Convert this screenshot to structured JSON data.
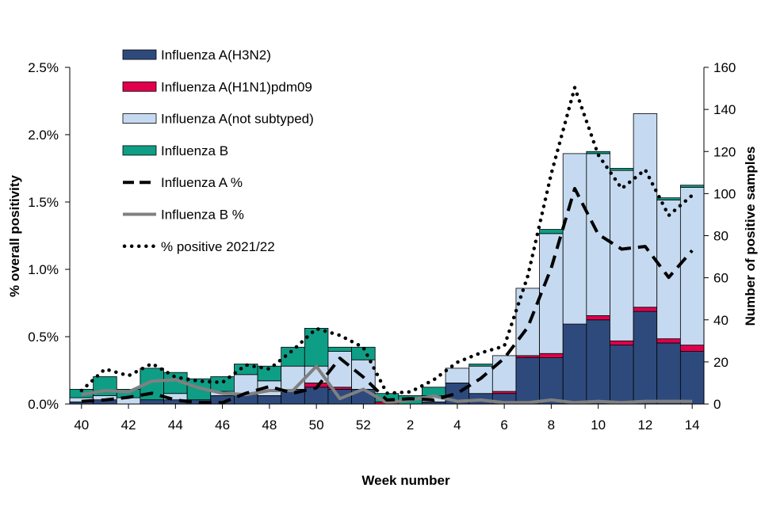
{
  "chart_data": {
    "type": "bar",
    "title": "",
    "xlabel": "Week number",
    "ylabel_left": "% overall positivity",
    "ylabel_right": "Number of positive samples",
    "ylim_left": [
      0,
      2.5
    ],
    "ylim_right": [
      0,
      160
    ],
    "weeks": [
      40,
      41,
      42,
      43,
      44,
      45,
      46,
      47,
      48,
      49,
      50,
      51,
      52,
      1,
      2,
      3,
      4,
      5,
      6,
      7,
      8,
      9,
      10,
      11,
      12,
      13,
      14
    ],
    "x_tick_labels": [
      "40",
      "42",
      "44",
      "46",
      "48",
      "50",
      "52",
      "2",
      "4",
      "6",
      "8",
      "10",
      "12",
      "14"
    ],
    "y_left_tick_labels": [
      "0.0%",
      "0.5%",
      "1.0%",
      "1.5%",
      "2.0%",
      "2.5%"
    ],
    "y_right_tick_labels": [
      "0",
      "20",
      "40",
      "60",
      "80",
      "100",
      "120",
      "140",
      "160"
    ],
    "bar_series": [
      {
        "name": "Influenza A(H3N2)",
        "color": "#2e4a7d",
        "values": [
          1,
          2,
          0,
          2,
          2,
          2,
          4,
          5,
          4,
          7,
          8,
          7,
          7,
          0,
          0,
          1,
          10,
          5,
          5,
          22,
          22,
          38,
          40,
          28,
          44,
          29,
          25
        ]
      },
      {
        "name": "Influenza A(H1N1)pdm09",
        "color": "#e0004d",
        "values": [
          0,
          0,
          0,
          0,
          0,
          0,
          0,
          0,
          0,
          0,
          2,
          1,
          0,
          1,
          0,
          0,
          0,
          0,
          1,
          1,
          2,
          0,
          2,
          2,
          2,
          2,
          3
        ]
      },
      {
        "name": "Influenza A(not subtyped)",
        "color": "#c5daf0",
        "values": [
          2,
          2,
          3,
          0,
          3,
          0,
          2,
          9,
          7,
          11,
          8,
          17,
          14,
          0,
          0,
          3,
          7,
          13,
          17,
          32,
          57,
          81,
          77,
          81,
          92,
          66,
          75
        ]
      },
      {
        "name": "Influenza B",
        "color": "#0e9e86",
        "values": [
          4,
          9,
          4,
          15,
          10,
          10,
          7,
          5,
          7,
          9,
          18,
          2,
          6,
          4,
          4,
          4,
          0,
          1,
          0,
          0,
          2,
          0,
          1,
          1,
          0,
          1,
          1
        ]
      }
    ],
    "line_series": [
      {
        "name": "Influenza A %",
        "style": "dashed",
        "color": "#000000",
        "values": [
          0.02,
          0.03,
          0.05,
          0.08,
          0.03,
          0.01,
          0.01,
          0.08,
          0.13,
          0.08,
          0.12,
          0.34,
          0.2,
          0.03,
          0.04,
          0.03,
          0.08,
          0.19,
          0.34,
          0.57,
          1.01,
          1.6,
          1.26,
          1.15,
          1.17,
          0.94,
          1.14
        ]
      },
      {
        "name": "Influenza B %",
        "style": "solid",
        "color": "#808080",
        "values": [
          0.07,
          0.1,
          0.09,
          0.17,
          0.18,
          0.12,
          0.08,
          0.07,
          0.1,
          0.1,
          0.28,
          0.04,
          0.11,
          0.01,
          0.03,
          0.06,
          0.02,
          0.03,
          0.01,
          0.01,
          0.03,
          0.01,
          0.02,
          0.01,
          0.02,
          0.02,
          0.02
        ]
      },
      {
        "name": "% positive 2021/22",
        "style": "dotted",
        "color": "#000000",
        "values": [
          0.1,
          0.26,
          0.21,
          0.3,
          0.2,
          0.17,
          0.16,
          0.29,
          0.26,
          0.4,
          0.56,
          0.51,
          0.42,
          0.08,
          0.09,
          0.18,
          0.31,
          0.38,
          0.43,
          0.95,
          1.71,
          2.35,
          1.85,
          1.6,
          1.74,
          1.4,
          1.55
        ]
      }
    ],
    "legend": {
      "placement": "top-left",
      "items": [
        {
          "label": "Influenza A(H3N2)",
          "kind": "bar",
          "color": "#2e4a7d"
        },
        {
          "label": "Influenza A(H1N1)pdm09",
          "kind": "bar",
          "color": "#e0004d"
        },
        {
          "label": "Influenza A(not subtyped)",
          "kind": "bar",
          "color": "#c5daf0"
        },
        {
          "label": "Influenza B",
          "kind": "bar",
          "color": "#0e9e86"
        },
        {
          "label": "Influenza A %",
          "kind": "dashed",
          "color": "#000000"
        },
        {
          "label": "Influenza B %",
          "kind": "solid",
          "color": "#808080"
        },
        {
          "label": "% positive 2021/22",
          "kind": "dotted",
          "color": "#000000"
        }
      ]
    }
  }
}
